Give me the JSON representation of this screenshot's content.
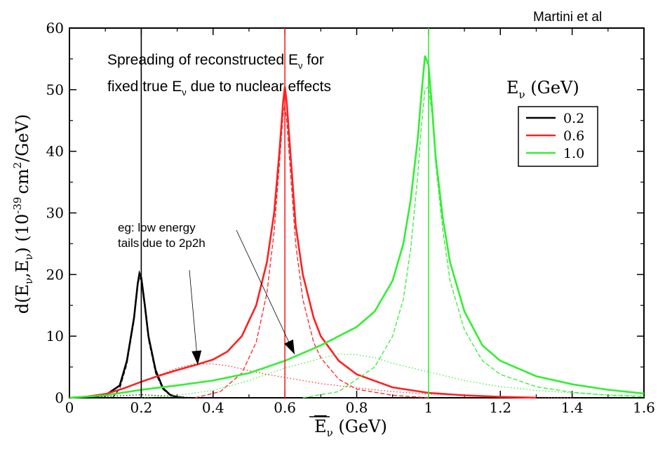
{
  "chart_data": {
    "type": "line",
    "credit": "Martini et al",
    "annotation_main": {
      "line1_prefix": "Spreading of reconstructed E",
      "line1_sub": "ν",
      "line1_suffix": " for",
      "line2_prefix": "fixed true E",
      "line2_sub": "ν",
      "line2_suffix": " due to nuclear effects"
    },
    "annotation_tails": {
      "line1": "eg: low energy",
      "line2": "tails due to 2p2h"
    },
    "ylabel": "d(Eν, Ēν) (10⁻³⁹ cm²/GeV)",
    "ylabel_parts": {
      "pre": "d(E",
      "nu1": "ν",
      "comma": ",E",
      "nu2": "ν",
      "post": ") (10",
      "exp": "-39",
      "unit": "cm",
      "unitexp": "2",
      "tail": "/GeV)"
    },
    "xlabel": "Ēν (GeV)",
    "xlabel_parts": {
      "main": "E",
      "sub": "ν",
      "unit": " (GeV)"
    },
    "xlim": [
      0,
      1.6
    ],
    "ylim": [
      0,
      60
    ],
    "xticks": [
      "0",
      "0.2",
      "0.4",
      "0.6",
      "0.8",
      "1",
      "1.2",
      "1.4",
      "1.6"
    ],
    "xtick_values": [
      0,
      0.2,
      0.4,
      0.6,
      0.8,
      1.0,
      1.2,
      1.4,
      1.6
    ],
    "yticks": [
      "0",
      "10",
      "20",
      "30",
      "40",
      "50",
      "60"
    ],
    "ytick_values": [
      0,
      10,
      20,
      30,
      40,
      50,
      60
    ],
    "legend": {
      "title_main": "E",
      "title_sub": "ν",
      "title_unit": " (GeV)",
      "placement": "right",
      "entries": [
        {
          "label": "0.2",
          "color": "#000000"
        },
        {
          "label": "0.6",
          "color": "#ff2020"
        },
        {
          "label": "1.0",
          "color": "#33ee33"
        }
      ]
    },
    "series": [
      {
        "name": "0.2",
        "color": "#000000",
        "true_energy": 0.2,
        "total": [
          [
            0.0,
            0
          ],
          [
            0.05,
            0.1
          ],
          [
            0.1,
            0.4
          ],
          [
            0.14,
            2.0
          ],
          [
            0.16,
            6.0
          ],
          [
            0.18,
            13
          ],
          [
            0.19,
            18.5
          ],
          [
            0.195,
            20.2
          ],
          [
            0.2,
            19.5
          ],
          [
            0.21,
            15
          ],
          [
            0.22,
            10
          ],
          [
            0.24,
            4.5
          ],
          [
            0.26,
            1.6
          ],
          [
            0.28,
            0.5
          ],
          [
            0.3,
            0.1
          ],
          [
            0.32,
            0
          ]
        ],
        "qe": [
          [
            0.12,
            0
          ],
          [
            0.14,
            1.5
          ],
          [
            0.16,
            5.5
          ],
          [
            0.18,
            12.5
          ],
          [
            0.19,
            18
          ],
          [
            0.195,
            19.6
          ],
          [
            0.2,
            19
          ],
          [
            0.21,
            14.5
          ],
          [
            0.22,
            9.5
          ],
          [
            0.24,
            4
          ],
          [
            0.26,
            1.4
          ],
          [
            0.28,
            0.4
          ],
          [
            0.3,
            0
          ]
        ],
        "np": [
          [
            0.0,
            0
          ],
          [
            0.1,
            0.2
          ],
          [
            0.2,
            0.5
          ],
          [
            0.3,
            0.2
          ],
          [
            0.35,
            0
          ]
        ]
      },
      {
        "name": "0.6",
        "color": "#ff2020",
        "true_energy": 0.6,
        "total": [
          [
            0.0,
            0
          ],
          [
            0.05,
            0.2
          ],
          [
            0.1,
            0.6
          ],
          [
            0.15,
            1.5
          ],
          [
            0.2,
            2.6
          ],
          [
            0.25,
            3.6
          ],
          [
            0.3,
            4.5
          ],
          [
            0.35,
            5.3
          ],
          [
            0.4,
            6.2
          ],
          [
            0.44,
            7.5
          ],
          [
            0.48,
            10
          ],
          [
            0.52,
            15
          ],
          [
            0.55,
            22
          ],
          [
            0.57,
            30
          ],
          [
            0.585,
            40
          ],
          [
            0.595,
            48
          ],
          [
            0.6,
            50.5
          ],
          [
            0.605,
            48
          ],
          [
            0.615,
            40
          ],
          [
            0.63,
            28
          ],
          [
            0.65,
            20
          ],
          [
            0.68,
            13
          ],
          [
            0.7,
            10
          ],
          [
            0.75,
            6
          ],
          [
            0.8,
            3.8
          ],
          [
            0.9,
            1.7
          ],
          [
            1.0,
            0.8
          ],
          [
            1.1,
            0.4
          ],
          [
            1.2,
            0.15
          ],
          [
            1.3,
            0
          ]
        ],
        "qe": [
          [
            0.35,
            0
          ],
          [
            0.42,
            1
          ],
          [
            0.48,
            4
          ],
          [
            0.52,
            9
          ],
          [
            0.55,
            17
          ],
          [
            0.57,
            27
          ],
          [
            0.585,
            38
          ],
          [
            0.595,
            46
          ],
          [
            0.6,
            47.5
          ],
          [
            0.605,
            45
          ],
          [
            0.615,
            37
          ],
          [
            0.63,
            25
          ],
          [
            0.65,
            16
          ],
          [
            0.68,
            9
          ],
          [
            0.7,
            6.5
          ],
          [
            0.75,
            3
          ],
          [
            0.8,
            1.4
          ],
          [
            0.9,
            0.4
          ],
          [
            1.0,
            0
          ]
        ],
        "np": [
          [
            0.0,
            0
          ],
          [
            0.1,
            0.6
          ],
          [
            0.2,
            2.5
          ],
          [
            0.3,
            4.8
          ],
          [
            0.35,
            5.5
          ],
          [
            0.4,
            5.5
          ],
          [
            0.45,
            5.1
          ],
          [
            0.5,
            4.4
          ],
          [
            0.55,
            3.8
          ],
          [
            0.6,
            3.3
          ],
          [
            0.7,
            2.3
          ],
          [
            0.8,
            1.6
          ],
          [
            0.9,
            1
          ],
          [
            1.0,
            0.6
          ],
          [
            1.2,
            0.2
          ],
          [
            1.4,
            0
          ]
        ]
      },
      {
        "name": "1.0",
        "color": "#33ee33",
        "true_energy": 1.0,
        "total": [
          [
            0.0,
            0
          ],
          [
            0.1,
            0.4
          ],
          [
            0.2,
            1.3
          ],
          [
            0.3,
            2.0
          ],
          [
            0.4,
            2.8
          ],
          [
            0.5,
            4.0
          ],
          [
            0.6,
            6.0
          ],
          [
            0.7,
            8.5
          ],
          [
            0.8,
            11.5
          ],
          [
            0.85,
            14
          ],
          [
            0.9,
            19
          ],
          [
            0.93,
            25
          ],
          [
            0.95,
            32
          ],
          [
            0.97,
            42
          ],
          [
            0.98,
            49
          ],
          [
            0.99,
            55.5
          ],
          [
            1.0,
            54
          ],
          [
            1.01,
            47
          ],
          [
            1.02,
            39
          ],
          [
            1.04,
            29
          ],
          [
            1.06,
            22
          ],
          [
            1.1,
            14
          ],
          [
            1.15,
            8.5
          ],
          [
            1.2,
            6
          ],
          [
            1.3,
            3.5
          ],
          [
            1.4,
            2.2
          ],
          [
            1.5,
            1.3
          ],
          [
            1.6,
            0.7
          ]
        ],
        "qe": [
          [
            0.65,
            0
          ],
          [
            0.75,
            1
          ],
          [
            0.85,
            5
          ],
          [
            0.9,
            10
          ],
          [
            0.93,
            16
          ],
          [
            0.95,
            24
          ],
          [
            0.97,
            36
          ],
          [
            0.98,
            44
          ],
          [
            0.99,
            50
          ],
          [
            1.0,
            50.5
          ],
          [
            1.01,
            46
          ],
          [
            1.02,
            38
          ],
          [
            1.04,
            27
          ],
          [
            1.06,
            19
          ],
          [
            1.1,
            11
          ],
          [
            1.15,
            6
          ],
          [
            1.2,
            3.8
          ],
          [
            1.3,
            1.8
          ],
          [
            1.4,
            0.9
          ],
          [
            1.5,
            0.4
          ],
          [
            1.6,
            0.2
          ]
        ],
        "np": [
          [
            0.2,
            0
          ],
          [
            0.3,
            0.4
          ],
          [
            0.4,
            1.2
          ],
          [
            0.5,
            2.8
          ],
          [
            0.6,
            4.8
          ],
          [
            0.7,
            6.4
          ],
          [
            0.75,
            7.1
          ],
          [
            0.8,
            7
          ],
          [
            0.85,
            6.5
          ],
          [
            0.9,
            5.6
          ],
          [
            1.0,
            4.2
          ],
          [
            1.1,
            2.8
          ],
          [
            1.2,
            1.8
          ],
          [
            1.3,
            1.2
          ],
          [
            1.4,
            0.8
          ],
          [
            1.5,
            0.5
          ],
          [
            1.6,
            0.3
          ]
        ]
      }
    ]
  }
}
